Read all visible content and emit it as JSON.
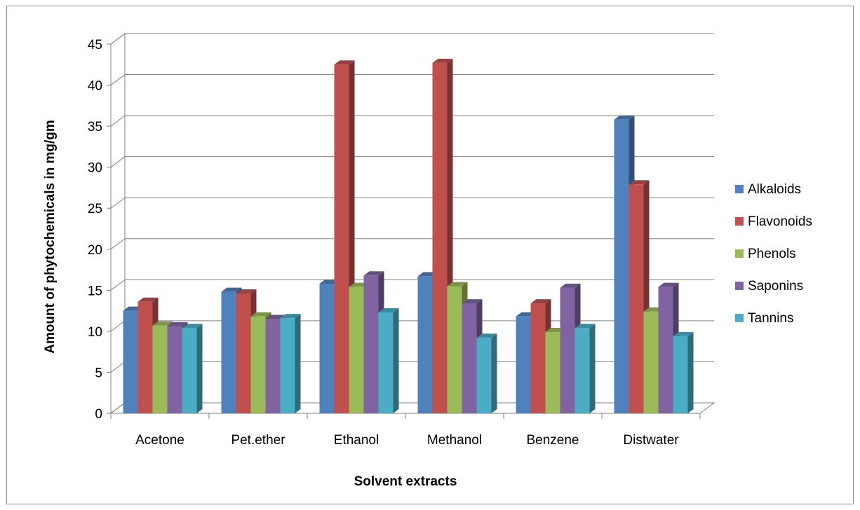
{
  "chart_data": {
    "type": "bar",
    "style": "3d-clustered-column",
    "xlabel": "Solvent extracts",
    "ylabel": "Amount of phytochemicals in mg/gm",
    "ylim": [
      0,
      45
    ],
    "yticks": [
      0,
      5,
      10,
      15,
      20,
      25,
      30,
      35,
      40,
      45
    ],
    "grid": true,
    "legend_position": "right",
    "categories": [
      "Acetone",
      "Pet.ether",
      "Ethanol",
      "Methanol",
      "Benzene",
      "Distwater"
    ],
    "series": [
      {
        "name": "Alkaloids",
        "color": "#4f81bd",
        "values": [
          12.5,
          14.8,
          15.8,
          16.7,
          11.8,
          35.8
        ]
      },
      {
        "name": "Flavonoids",
        "color": "#c0504d",
        "values": [
          13.6,
          14.6,
          42.5,
          42.7,
          13.4,
          27.9
        ]
      },
      {
        "name": "Phenols",
        "color": "#9bbb59",
        "values": [
          10.7,
          11.8,
          15.4,
          15.5,
          9.9,
          12.4
        ]
      },
      {
        "name": "Saponins",
        "color": "#8064a2",
        "values": [
          10.6,
          11.5,
          16.8,
          13.4,
          15.3,
          15.4
        ]
      },
      {
        "name": "Tannins",
        "color": "#4bacc6",
        "values": [
          10.4,
          11.6,
          12.3,
          9.2,
          10.4,
          9.4
        ]
      }
    ]
  }
}
